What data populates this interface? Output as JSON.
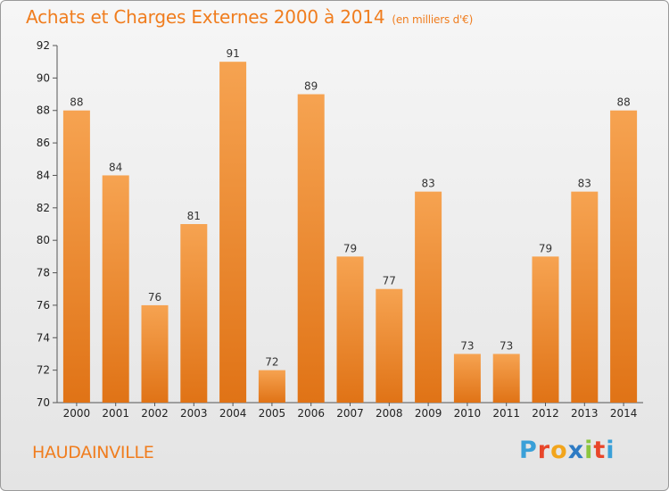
{
  "title": "Achats et Charges Externes 2000 à 2014",
  "unit": "(en milliers d'€)",
  "commune": "HAUDAINVILLE",
  "logo": {
    "letters": [
      "P",
      "r",
      "o",
      "x",
      "i",
      "t",
      "i"
    ],
    "colors": [
      "#3aa0d8",
      "#e8462a",
      "#f2a51c",
      "#2e7bc4",
      "#8cc63f",
      "#e8462a",
      "#3aa0d8"
    ]
  },
  "colors": {
    "accent": "#f07d1e",
    "bar_top": "#f6a351",
    "bar_bottom": "#e07316"
  },
  "chart_data": {
    "type": "bar",
    "categories": [
      "2000",
      "2001",
      "2002",
      "2003",
      "2004",
      "2005",
      "2006",
      "2007",
      "2008",
      "2009",
      "2010",
      "2011",
      "2012",
      "2013",
      "2014"
    ],
    "values": [
      88,
      84,
      76,
      81,
      91,
      72,
      89,
      79,
      77,
      83,
      73,
      73,
      79,
      83,
      88
    ],
    "ylim": [
      70,
      92
    ],
    "yticks": [
      70,
      72,
      74,
      76,
      78,
      80,
      82,
      84,
      86,
      88,
      90,
      92
    ],
    "grid": false
  }
}
